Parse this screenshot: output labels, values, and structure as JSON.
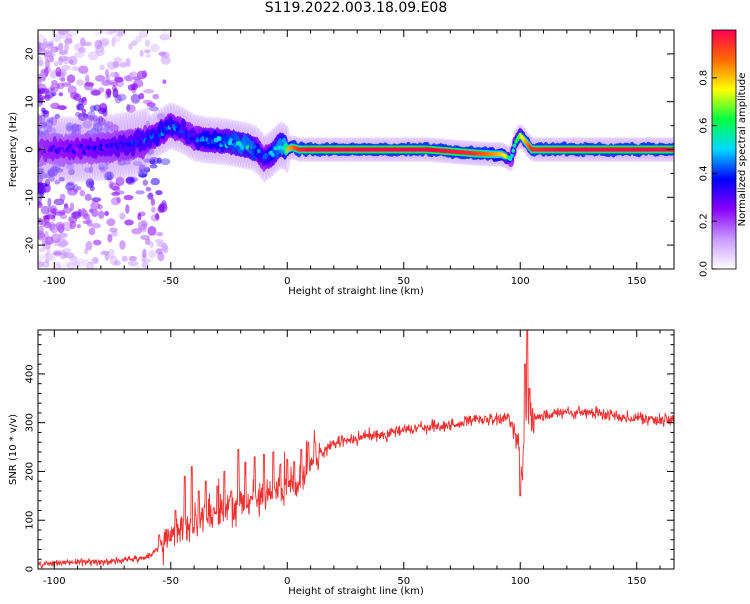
{
  "title": "S119.2022.003.18.09.E08",
  "chart_data": [
    {
      "type": "heatmap",
      "name": "spectrogram",
      "xlabel": "Height of straight line (km)",
      "ylabel": "Frequency (Hz)",
      "xlim": [
        -107,
        166
      ],
      "ylim": [
        -25,
        25
      ],
      "xticks": [
        -100,
        -50,
        0,
        50,
        100,
        150
      ],
      "yticks": [
        -20,
        -10,
        0,
        10,
        20
      ],
      "colorbar": {
        "label": "Normalized spectral amplitude",
        "range": [
          0,
          1
        ],
        "ticks": [
          "0.0",
          "0.2",
          "0.4",
          "0.6",
          "0.8"
        ],
        "colormap": [
          "#ffffff",
          "#c89bff",
          "#8a00ff",
          "#0000ff",
          "#00d8ff",
          "#00ff44",
          "#ffff00",
          "#ff6a00",
          "#ff0050"
        ]
      },
      "ridge": {
        "x": [
          -107,
          -90,
          -75,
          -62,
          -55,
          -50,
          -45,
          -40,
          -35,
          -30,
          -25,
          -20,
          -15,
          -12,
          -10,
          -7,
          -4,
          -2,
          0,
          2,
          5,
          10,
          20,
          40,
          60,
          80,
          88,
          92,
          94,
          96,
          98,
          100,
          105,
          120,
          140,
          166
        ],
        "f": [
          0,
          0,
          0.5,
          1.5,
          3.5,
          5,
          4,
          2.5,
          2,
          1.8,
          1.5,
          1,
          0.5,
          -0.5,
          -2,
          -1,
          0.5,
          1,
          0,
          0.5,
          0,
          0,
          0,
          0,
          0,
          -0.8,
          -1,
          -1,
          -1.5,
          -2,
          1.5,
          3,
          0,
          0,
          0,
          0
        ],
        "amp": [
          0.35,
          0.4,
          0.45,
          0.5,
          0.55,
          0.55,
          0.5,
          0.5,
          0.6,
          0.6,
          0.65,
          0.7,
          0.7,
          0.55,
          0.5,
          0.6,
          0.7,
          0.75,
          0.8,
          0.85,
          0.95,
          1.0,
          1.0,
          1.0,
          1.0,
          0.95,
          0.85,
          0.8,
          0.75,
          0.5,
          0.6,
          0.7,
          0.95,
          1.0,
          1.0,
          1.0
        ]
      }
    },
    {
      "type": "line",
      "name": "snr",
      "xlabel": "Height of straight line (km)",
      "ylabel": "SNR (10 * v/v)",
      "xlim": [
        -107,
        166
      ],
      "ylim": [
        0,
        490
      ],
      "xticks": [
        -100,
        -50,
        0,
        50,
        100,
        150
      ],
      "yticks": [
        0,
        100,
        200,
        300,
        400
      ],
      "color": "#f03030",
      "series": [
        {
          "x": [
            -107,
            -100,
            -90,
            -80,
            -70,
            -62,
            -58,
            -55,
            -52,
            -50,
            -48,
            -45,
            -42,
            -40,
            -37,
            -35,
            -32,
            -30,
            -27,
            -25,
            -22,
            -20,
            -17,
            -15,
            -12,
            -10,
            -7,
            -5,
            -2,
            0,
            2,
            5,
            8,
            10,
            15,
            20,
            25,
            30,
            35,
            40,
            50,
            60,
            70,
            80,
            90,
            95,
            98,
            100,
            101,
            102,
            103,
            104,
            105,
            110,
            120,
            130,
            140,
            150,
            160,
            166
          ],
          "y": [
            10,
            12,
            14,
            15,
            18,
            22,
            30,
            45,
            55,
            70,
            60,
            90,
            80,
            100,
            95,
            110,
            100,
            120,
            115,
            130,
            120,
            140,
            135,
            150,
            140,
            160,
            150,
            165,
            155,
            170,
            175,
            185,
            200,
            215,
            235,
            255,
            265,
            265,
            275,
            275,
            285,
            290,
            295,
            305,
            305,
            310,
            280,
            250,
            200,
            300,
            340,
            320,
            310,
            315,
            320,
            320,
            315,
            310,
            305,
            305
          ]
        }
      ],
      "peaks": {
        "x": [
          -55,
          -48,
          -44,
          -41,
          -38,
          -35,
          -30,
          -27,
          -24,
          -21,
          -18,
          -14,
          -10,
          -6,
          -3,
          0,
          3,
          6,
          9,
          12,
          100,
          102,
          103,
          104
        ],
        "y": [
          70,
          120,
          190,
          210,
          160,
          180,
          170,
          200,
          160,
          245,
          220,
          230,
          235,
          240,
          215,
          225,
          220,
          245,
          260,
          260,
          150,
          420,
          490,
          370
        ]
      }
    }
  ]
}
